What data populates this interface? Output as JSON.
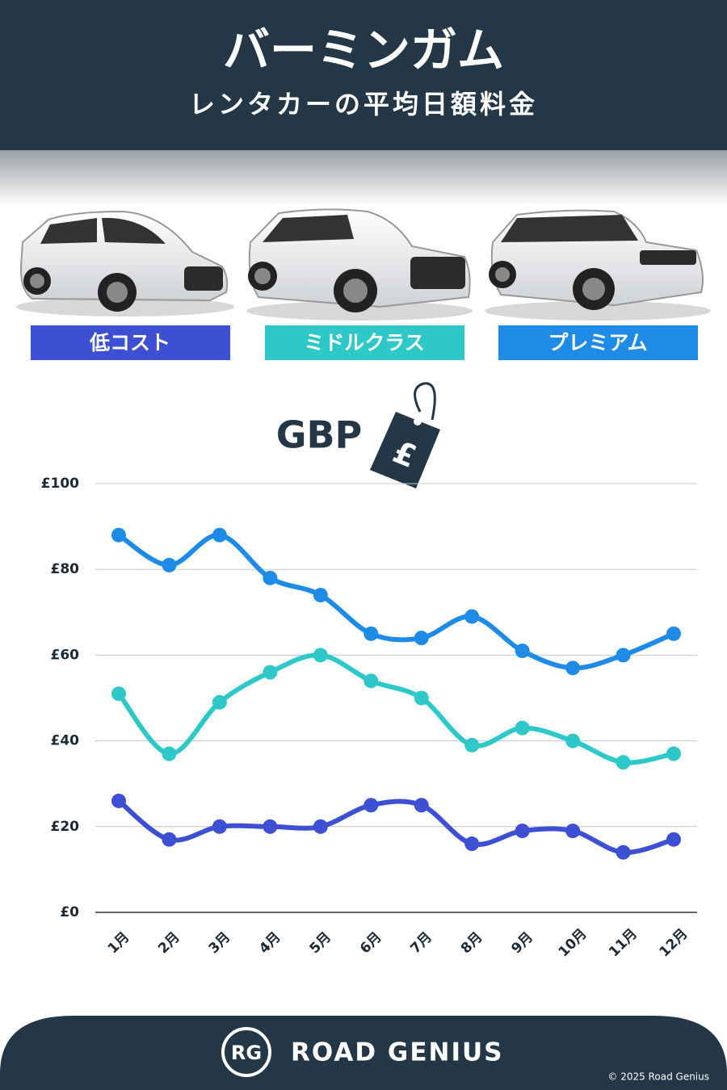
{
  "chart_data": {
    "type": "line",
    "title": "バーミンガム",
    "subtitle": "レンタカーの平均日額料金",
    "annotation": "GBP",
    "currency_symbol": "£",
    "categories": [
      "1月",
      "2月",
      "3月",
      "4月",
      "5月",
      "6月",
      "7月",
      "8月",
      "9月",
      "10月",
      "11月",
      "12月"
    ],
    "series": [
      {
        "name": "低コスト",
        "color": "#3d4fd3",
        "values": [
          26,
          17,
          20,
          20,
          20,
          25,
          25,
          16,
          19,
          19,
          14,
          17
        ]
      },
      {
        "name": "ミドルクラス",
        "color": "#2ec8c8",
        "values": [
          51,
          37,
          49,
          56,
          60,
          54,
          50,
          39,
          43,
          40,
          35,
          37
        ]
      },
      {
        "name": "プレミアム",
        "color": "#1e8be6",
        "values": [
          88,
          81,
          88,
          78,
          74,
          65,
          64,
          69,
          61,
          57,
          60,
          65
        ]
      }
    ],
    "ylim": [
      0,
      100
    ],
    "yticks": [
      {
        "value": 0,
        "label": "£0"
      },
      {
        "value": 20,
        "label": "£20"
      },
      {
        "value": 40,
        "label": "£40"
      },
      {
        "value": 60,
        "label": "£60"
      },
      {
        "value": 80,
        "label": "£80"
      },
      {
        "value": 100,
        "label": "£100"
      }
    ],
    "grid": true,
    "smooth": true
  },
  "footer": {
    "logo": "RG",
    "brand": "ROAD GENIUS",
    "copyright": "© 2025 Road Genius"
  }
}
